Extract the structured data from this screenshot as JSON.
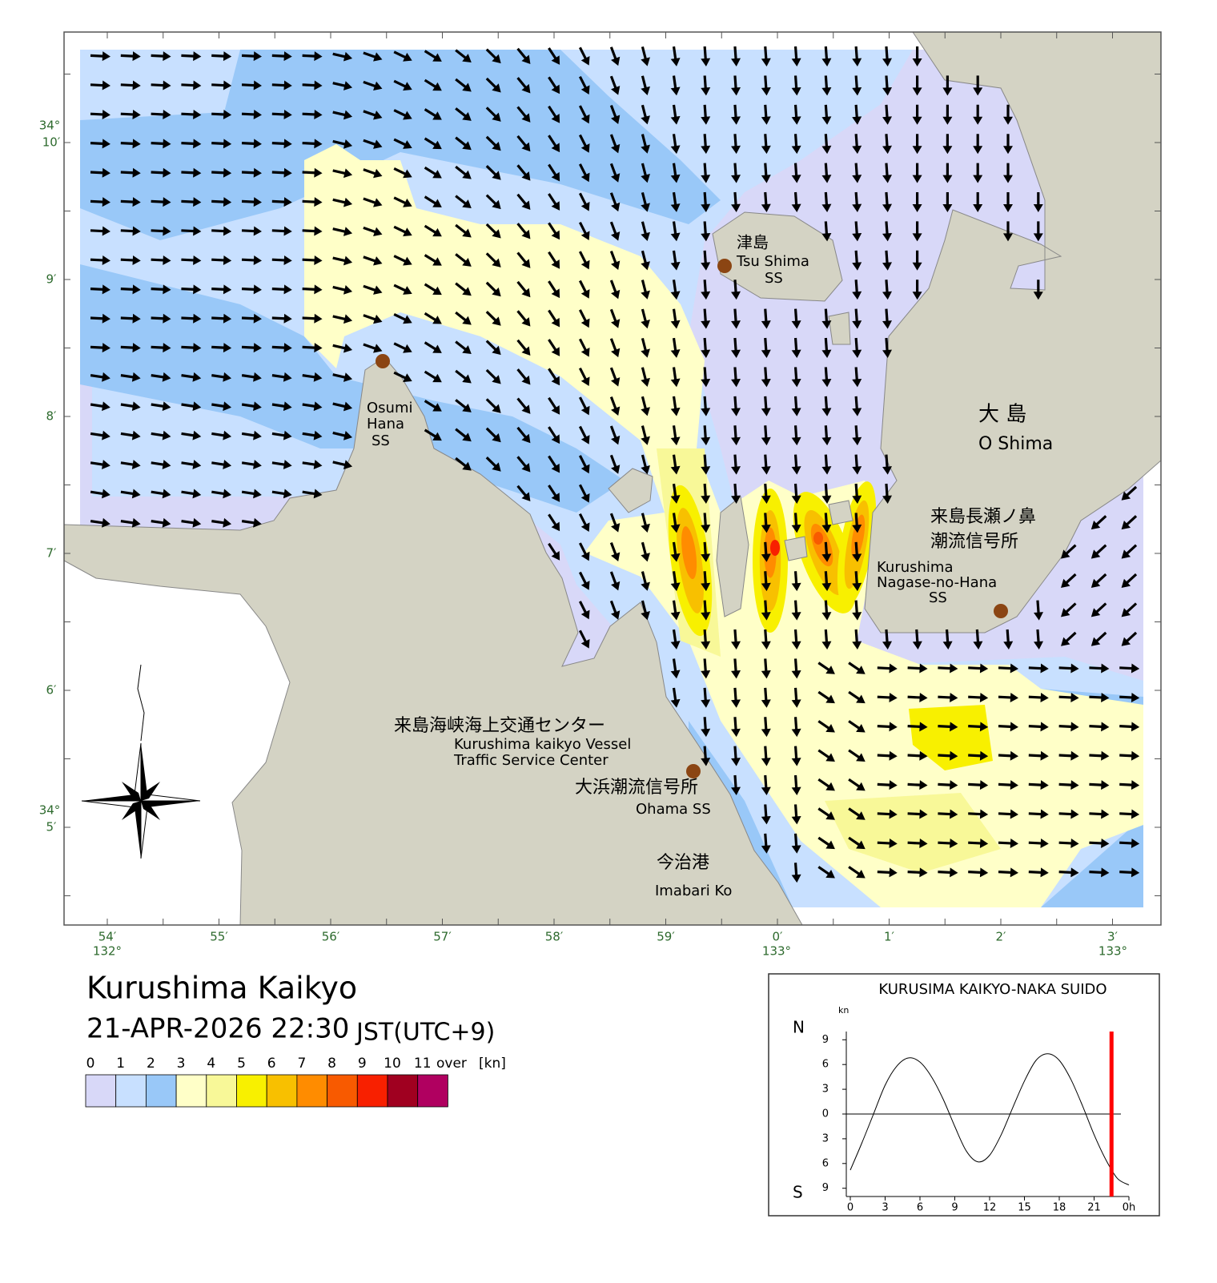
{
  "map": {
    "title": "Kurushima Kaikyo",
    "datetime": "21-APR-2026 22:30",
    "timezone": "JST(UTC+9)",
    "lon_labels": [
      "54′",
      "55′",
      "56′",
      "57′",
      "58′",
      "59′",
      "0′",
      "1′",
      "2′",
      "3′"
    ],
    "lon_degrees": [
      "132°",
      "133°",
      "133°"
    ],
    "lat_labels": [
      "10′",
      "9′",
      "8′",
      "7′",
      "6′",
      "5′"
    ],
    "lat_degrees": [
      "34°",
      "34°"
    ],
    "places": {
      "tsushima": [
        "津島",
        "Tsu Shima",
        "SS"
      ],
      "osumi": [
        "Osumi",
        "Hana",
        "SS"
      ],
      "oshima": [
        "大 島",
        "O Shima"
      ],
      "nagase": [
        "来島長瀬ノ鼻",
        "潮流信号所",
        "Kurushima",
        "Nagase-no-Hana",
        "SS"
      ],
      "vts": [
        "来島海峡海上交通センター",
        "Kurushima kaikyo Vessel",
        "Traffic Service Center"
      ],
      "ohama": [
        "大浜潮流信号所",
        "Ohama SS"
      ],
      "imabari": [
        "今治港",
        "Imabari Ko"
      ]
    },
    "legend": {
      "labels": [
        0,
        1,
        2,
        3,
        4,
        5,
        6,
        7,
        8,
        9,
        10,
        11
      ],
      "over": "over",
      "unit": "[kn]",
      "colors": [
        "#d8d8f8",
        "#c8e0ff",
        "#99c8f8",
        "#ffffc8",
        "#f8f898",
        "#f8f000",
        "#f8c000",
        "#ff8c00",
        "#f85a00",
        "#f82000",
        "#a00020",
        "#b00060"
      ]
    }
  },
  "tide_chart": {
    "type": "line",
    "title": "KURUSIMA KAIKYO-NAKA SUIDO",
    "ylabel": "kn",
    "north": "N",
    "south": "S",
    "x": [
      0,
      1,
      2,
      3,
      4,
      5,
      6,
      7,
      8,
      9,
      10,
      11,
      12,
      13,
      14,
      15,
      16,
      17,
      18,
      19,
      20,
      21,
      22,
      23,
      24
    ],
    "values": [
      -6.8,
      -3.5,
      0,
      3.5,
      5.8,
      6.8,
      6.3,
      4.5,
      1.8,
      -1.5,
      -4.5,
      -5.8,
      -5,
      -2.5,
      0.8,
      4,
      6.5,
      7.3,
      6.5,
      4.2,
      1,
      -2.5,
      -5.5,
      -7.8,
      -8.6
    ],
    "color": "#000000",
    "xlim": [
      0,
      24
    ],
    "ylim": [
      -10,
      10
    ],
    "xticks": [
      0,
      3,
      6,
      9,
      12,
      15,
      18,
      21,
      {
        "value": 24,
        "label": "0h"
      }
    ],
    "yticks": [
      {
        "value": -9,
        "label": "9"
      },
      {
        "value": -6,
        "label": "6"
      },
      {
        "value": -3,
        "label": "3"
      },
      0,
      3,
      6,
      9
    ],
    "current_time": 22.5,
    "current_color": "#ff0000"
  }
}
